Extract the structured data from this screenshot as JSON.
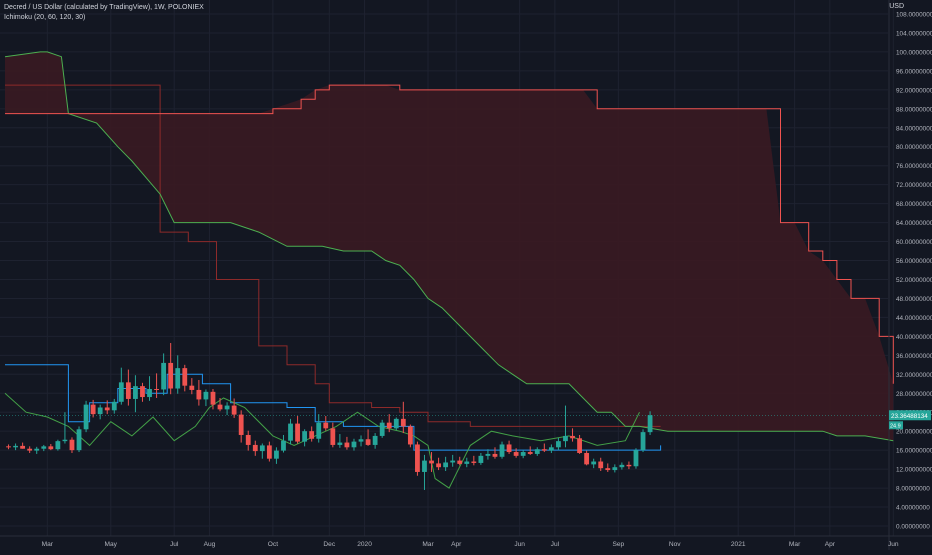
{
  "legend": {
    "title": "Decred / US Dollar (calculated by TradingView), 1W, POLONIEX",
    "indicator": "Ichimoku (20, 60, 120, 30)"
  },
  "axis": {
    "currency": "USD",
    "price_badge": "23.36488134",
    "price_badge_color": "#26a69a",
    "small_badge": "24.9"
  },
  "colors": {
    "background": "#131722",
    "grid": "#1e2230",
    "up": "#26a69a",
    "down": "#ef5350",
    "conversion": "#2196f3",
    "base": "#8d2a2a",
    "lagging": "#43a047",
    "span_a": "#4caf50",
    "span_b": "#ef5350",
    "cloud_fill": "#3a1a22"
  },
  "chart_data": {
    "type": "candlestick",
    "title": "Decred / US Dollar (calculated by TradingView), 1W, POLONIEX",
    "indicator": "Ichimoku (20, 60, 120, 30)",
    "ylim": [
      0,
      108
    ],
    "y_ticks": [
      "0.00000000",
      "4.00000000",
      "8.00000000",
      "12.00000000",
      "16.00000000",
      "20.00000000",
      "24.00000000",
      "28.00000000",
      "32.00000000",
      "36.00000000",
      "40.00000000",
      "44.00000000",
      "48.00000000",
      "52.00000000",
      "56.00000000",
      "60.00000000",
      "64.00000000",
      "68.00000000",
      "72.00000000",
      "76.00000000",
      "80.00000000",
      "84.00000000",
      "88.00000000",
      "92.00000000",
      "96.00000000",
      "100.00000000",
      "104.00000000",
      "108.00000000"
    ],
    "y_tick_values": [
      0,
      4,
      8,
      12,
      16,
      20,
      24,
      28,
      32,
      36,
      40,
      44,
      48,
      52,
      56,
      60,
      64,
      68,
      72,
      76,
      80,
      84,
      88,
      92,
      96,
      100,
      104,
      108
    ],
    "x_labels": [
      {
        "label": "Mar",
        "week": 6
      },
      {
        "label": "May",
        "week": 15
      },
      {
        "label": "Jul",
        "week": 24
      },
      {
        "label": "Aug",
        "week": 29
      },
      {
        "label": "Oct",
        "week": 38
      },
      {
        "label": "Dec",
        "week": 46
      },
      {
        "label": "2020",
        "week": 51
      },
      {
        "label": "Mar",
        "week": 60
      },
      {
        "label": "Apr",
        "week": 64
      },
      {
        "label": "Jun",
        "week": 73
      },
      {
        "label": "Jul",
        "week": 78
      },
      {
        "label": "Sep",
        "week": 87
      },
      {
        "label": "Nov",
        "week": 95
      },
      {
        "label": "2021",
        "week": 104
      },
      {
        "label": "Mar",
        "week": 112
      },
      {
        "label": "Apr",
        "week": 117
      },
      {
        "label": "Jun",
        "week": 126
      }
    ],
    "candles": [
      [
        16.8,
        17.2,
        16.2,
        16.6
      ],
      [
        16.6,
        17.4,
        16.0,
        16.9
      ],
      [
        16.9,
        17.6,
        16.3,
        16.3
      ],
      [
        16.3,
        16.8,
        15.4,
        15.9
      ],
      [
        15.9,
        16.7,
        15.2,
        16.3
      ],
      [
        16.3,
        17.1,
        15.8,
        16.8
      ],
      [
        16.8,
        17.3,
        16.0,
        16.2
      ],
      [
        16.2,
        18.2,
        15.9,
        17.9
      ],
      [
        17.9,
        24.0,
        17.4,
        18.2
      ],
      [
        18.2,
        18.7,
        15.4,
        16.0
      ],
      [
        16.0,
        21.0,
        15.6,
        20.4
      ],
      [
        20.4,
        26.4,
        19.8,
        25.6
      ],
      [
        25.6,
        26.6,
        22.9,
        23.6
      ],
      [
        23.6,
        25.6,
        22.5,
        25.0
      ],
      [
        25.0,
        26.5,
        23.6,
        24.4
      ],
      [
        24.4,
        26.8,
        23.7,
        26.2
      ],
      [
        26.2,
        33.4,
        25.6,
        30.3
      ],
      [
        30.3,
        33.0,
        25.4,
        26.8
      ],
      [
        26.8,
        31.8,
        24.0,
        29.5
      ],
      [
        29.5,
        30.2,
        26.2,
        27.2
      ],
      [
        27.2,
        31.6,
        26.4,
        28.9
      ],
      [
        28.9,
        32.2,
        27.0,
        28.8
      ],
      [
        28.8,
        36.4,
        27.6,
        34.4
      ],
      [
        34.4,
        38.6,
        27.8,
        29.0
      ],
      [
        29.0,
        36.0,
        27.9,
        33.3
      ],
      [
        33.3,
        34.0,
        28.4,
        29.6
      ],
      [
        29.6,
        31.2,
        27.8,
        28.7
      ],
      [
        28.7,
        30.8,
        25.4,
        26.7
      ],
      [
        26.7,
        28.8,
        25.3,
        28.3
      ],
      [
        28.3,
        28.9,
        24.6,
        25.6
      ],
      [
        25.6,
        27.0,
        24.2,
        24.6
      ],
      [
        24.6,
        26.1,
        23.4,
        25.4
      ],
      [
        25.4,
        26.9,
        22.8,
        23.5
      ],
      [
        23.5,
        24.4,
        17.6,
        19.2
      ],
      [
        19.2,
        20.1,
        15.9,
        17.1
      ],
      [
        17.1,
        18.0,
        14.8,
        15.8
      ],
      [
        15.8,
        17.4,
        14.2,
        17.0
      ],
      [
        17.0,
        17.8,
        13.6,
        14.2
      ],
      [
        14.2,
        16.6,
        13.1,
        15.9
      ],
      [
        15.9,
        19.2,
        15.5,
        18.0
      ],
      [
        18.0,
        22.6,
        17.2,
        21.6
      ],
      [
        21.6,
        23.2,
        17.4,
        17.8
      ],
      [
        17.8,
        20.4,
        16.8,
        20.0
      ],
      [
        20.0,
        21.0,
        17.8,
        18.4
      ],
      [
        18.4,
        23.6,
        17.6,
        21.8
      ],
      [
        21.8,
        23.2,
        20.1,
        20.6
      ],
      [
        20.6,
        21.8,
        16.6,
        17.1
      ],
      [
        17.1,
        19.4,
        16.5,
        17.6
      ],
      [
        17.6,
        18.8,
        16.1,
        16.6
      ],
      [
        16.6,
        18.4,
        15.9,
        17.8
      ],
      [
        17.8,
        19.1,
        16.8,
        18.3
      ],
      [
        18.3,
        20.4,
        16.9,
        17.1
      ],
      [
        17.1,
        19.6,
        16.3,
        19.0
      ],
      [
        19.0,
        22.4,
        18.6,
        21.8
      ],
      [
        21.8,
        23.6,
        19.8,
        20.6
      ],
      [
        20.6,
        22.9,
        20.2,
        22.6
      ],
      [
        22.6,
        26.2,
        19.6,
        21.0
      ],
      [
        21.0,
        21.4,
        16.6,
        17.2
      ],
      [
        17.2,
        17.8,
        10.6,
        11.4
      ],
      [
        11.4,
        15.0,
        7.6,
        13.8
      ],
      [
        13.8,
        15.6,
        11.4,
        13.2
      ],
      [
        13.2,
        14.4,
        11.8,
        12.4
      ],
      [
        12.4,
        14.6,
        11.6,
        13.4
      ],
      [
        13.4,
        15.0,
        12.5,
        13.8
      ],
      [
        13.8,
        14.6,
        12.8,
        13.1
      ],
      [
        13.1,
        14.4,
        12.4,
        13.6
      ],
      [
        13.6,
        14.8,
        12.8,
        13.3
      ],
      [
        13.3,
        15.4,
        12.9,
        14.8
      ],
      [
        14.8,
        16.2,
        14.0,
        15.2
      ],
      [
        15.2,
        16.6,
        14.2,
        14.6
      ],
      [
        14.6,
        17.8,
        14.2,
        17.2
      ],
      [
        17.2,
        18.0,
        15.2,
        15.6
      ],
      [
        15.6,
        16.4,
        14.4,
        14.8
      ],
      [
        14.8,
        16.0,
        14.3,
        15.6
      ],
      [
        15.6,
        16.8,
        15.0,
        15.2
      ],
      [
        15.2,
        16.6,
        14.8,
        16.2
      ],
      [
        16.2,
        17.4,
        15.6,
        15.9
      ],
      [
        15.9,
        17.2,
        15.4,
        16.6
      ],
      [
        16.6,
        18.6,
        16.0,
        17.9
      ],
      [
        17.9,
        25.4,
        16.6,
        19.0
      ],
      [
        19.0,
        20.6,
        17.8,
        18.5
      ],
      [
        18.5,
        19.2,
        15.2,
        15.4
      ],
      [
        15.4,
        15.9,
        12.8,
        13.0
      ],
      [
        13.0,
        14.2,
        12.2,
        13.6
      ],
      [
        13.6,
        14.4,
        11.6,
        12.2
      ],
      [
        12.2,
        13.2,
        11.4,
        11.8
      ],
      [
        11.8,
        13.0,
        11.3,
        12.4
      ],
      [
        12.4,
        13.4,
        11.9,
        12.9
      ],
      [
        12.9,
        13.6,
        12.0,
        12.6
      ],
      [
        12.6,
        16.4,
        12.1,
        16.0
      ],
      [
        16.0,
        20.4,
        15.6,
        19.8
      ],
      [
        19.8,
        24.2,
        19.2,
        23.36
      ]
    ],
    "series": [
      {
        "name": "Conversion Line",
        "x": [
          0,
          8,
          9,
          12,
          16,
          20,
          23,
          28,
          32,
          36,
          40,
          44,
          48,
          52,
          56,
          58,
          62,
          66,
          70,
          74,
          78,
          82,
          86,
          90,
          93
        ],
        "values": [
          34,
          34,
          22,
          26,
          29,
          28,
          32,
          30,
          26,
          26,
          25,
          22,
          21,
          21,
          21,
          16,
          16,
          16,
          16,
          16,
          16,
          16,
          16,
          16,
          17
        ]
      },
      {
        "name": "Base Line",
        "x": [
          0,
          6,
          12,
          18,
          22,
          26,
          30,
          36,
          40,
          44,
          46,
          52,
          56,
          60,
          66,
          72,
          78,
          84,
          88,
          90,
          93
        ],
        "values": [
          93,
          93,
          93,
          93,
          62,
          60,
          52,
          38,
          34,
          30,
          26,
          25,
          24,
          22,
          21,
          21,
          21,
          21,
          21,
          21,
          21
        ]
      },
      {
        "name": "Lagging Span",
        "x": [
          0,
          3,
          6,
          9,
          12,
          15,
          18,
          21,
          24,
          27,
          29,
          31,
          34,
          38,
          41,
          44,
          47,
          50,
          53,
          56,
          58,
          60,
          61,
          63,
          66,
          69,
          72,
          76,
          80,
          84,
          88,
          90
        ],
        "values": [
          28,
          24,
          23,
          21,
          17,
          22,
          19,
          23,
          18,
          21,
          25,
          27,
          25,
          19,
          17,
          19,
          21,
          24,
          21,
          20,
          19,
          17,
          10,
          8,
          17,
          20,
          19,
          18,
          19,
          17,
          18,
          24
        ]
      },
      {
        "name": "Leading Span A",
        "x": [
          0,
          5,
          6,
          8,
          9,
          13,
          16,
          18,
          22,
          24,
          30,
          32,
          36,
          40,
          44,
          45,
          48,
          52,
          54,
          56,
          58,
          60,
          62,
          64,
          66,
          68,
          70,
          72,
          74,
          76,
          80,
          82,
          84,
          86,
          88,
          90,
          94,
          96,
          100,
          104,
          108,
          110,
          114,
          116,
          118,
          120,
          122,
          126
        ],
        "values": [
          99,
          100,
          100,
          99,
          87,
          85,
          80,
          77,
          70,
          64,
          64,
          64,
          62,
          59,
          59,
          59,
          58,
          58,
          56,
          55,
          52,
          48,
          46,
          43,
          40,
          37,
          34,
          32,
          30,
          30,
          30,
          27,
          24,
          24,
          21,
          21,
          20,
          20,
          20,
          20,
          20,
          20,
          20,
          20,
          19,
          19,
          19,
          18
        ]
      },
      {
        "name": "Leading Span B",
        "x": [
          0,
          5,
          9,
          15,
          20,
          25,
          30,
          35,
          36,
          38,
          42,
          44,
          46,
          50,
          52,
          54,
          56,
          60,
          66,
          70,
          76,
          82,
          84,
          86,
          90,
          92,
          100,
          108,
          110,
          112,
          114,
          116,
          118,
          120,
          122,
          124,
          126
        ],
        "values": [
          87,
          87,
          87,
          87,
          87,
          87,
          87,
          87,
          87,
          88,
          90,
          92,
          93,
          93,
          93,
          93,
          92,
          92,
          92,
          92,
          92,
          92,
          88,
          88,
          88,
          88,
          88,
          88,
          64,
          64,
          58,
          56,
          52,
          48,
          48,
          40,
          30
        ]
      }
    ]
  }
}
